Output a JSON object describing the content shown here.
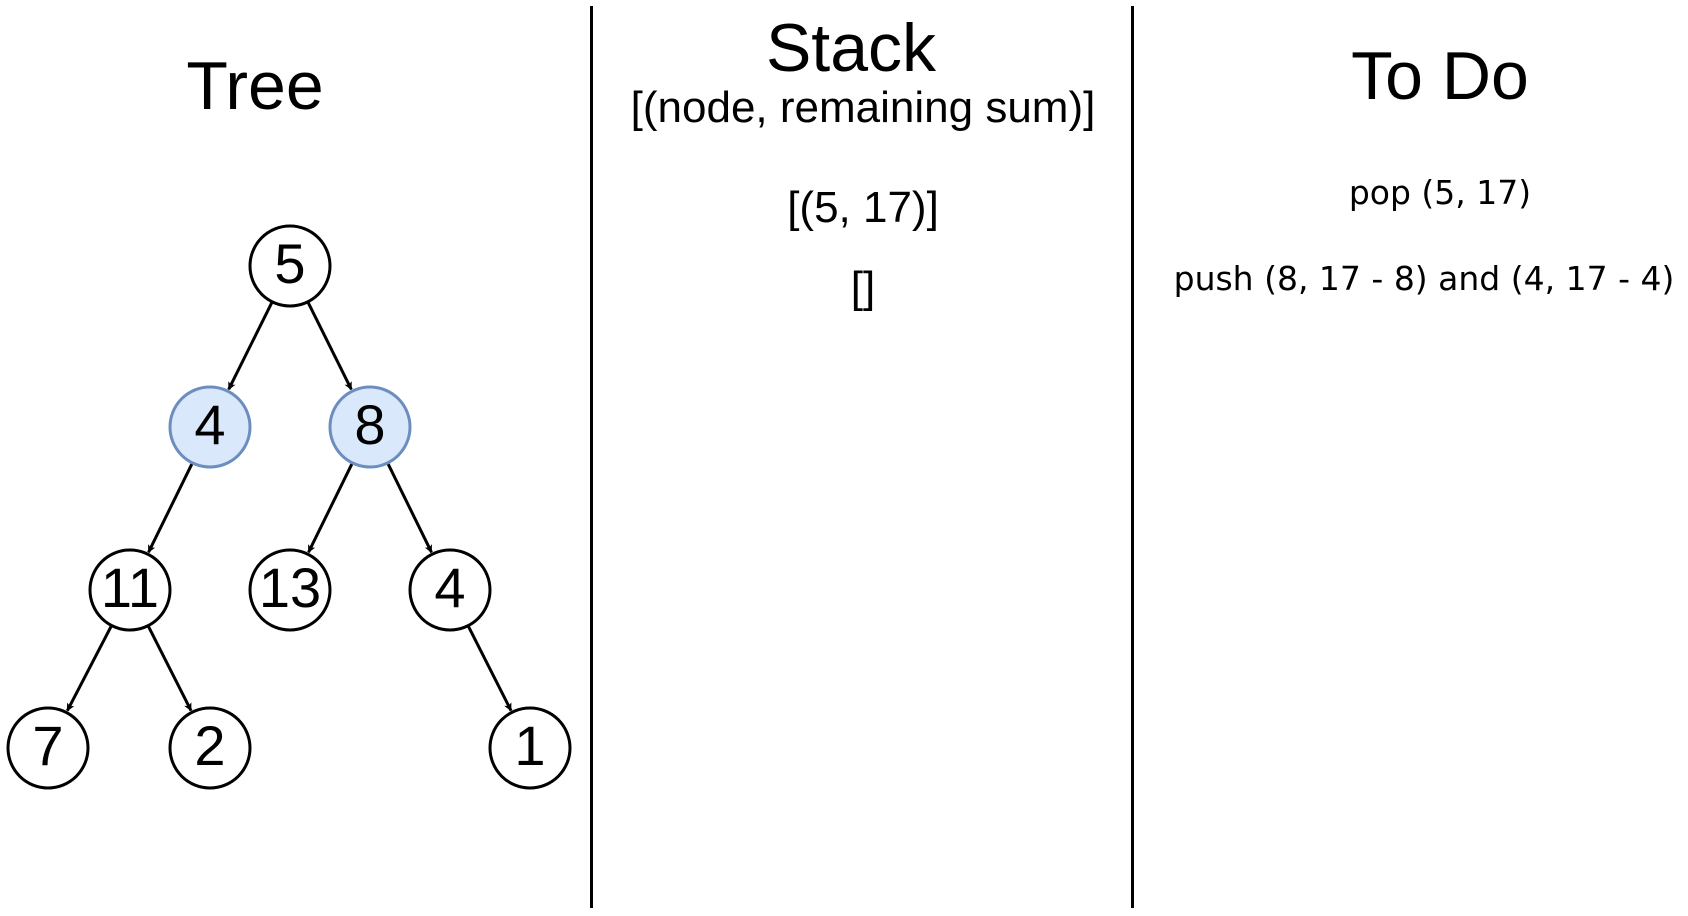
{
  "columns": {
    "tree": {
      "title": "Tree"
    },
    "stack": {
      "title": "Stack",
      "subtitle": "[(node, remaining sum)]"
    },
    "todo": {
      "title": "To Do"
    }
  },
  "tree": {
    "nodes": [
      {
        "id": "n5",
        "label": "5",
        "highlighted": false
      },
      {
        "id": "n4",
        "label": "4",
        "highlighted": true
      },
      {
        "id": "n8",
        "label": "8",
        "highlighted": true
      },
      {
        "id": "n11",
        "label": "11",
        "highlighted": false
      },
      {
        "id": "n13",
        "label": "13",
        "highlighted": false
      },
      {
        "id": "n4b",
        "label": "4",
        "highlighted": false
      },
      {
        "id": "n7",
        "label": "7",
        "highlighted": false
      },
      {
        "id": "n2",
        "label": "2",
        "highlighted": false
      },
      {
        "id": "n1",
        "label": "1",
        "highlighted": false
      }
    ],
    "edges": [
      [
        "n5",
        "n4"
      ],
      [
        "n5",
        "n8"
      ],
      [
        "n4",
        "n11"
      ],
      [
        "n8",
        "n13"
      ],
      [
        "n8",
        "n4b"
      ],
      [
        "n11",
        "n7"
      ],
      [
        "n11",
        "n2"
      ],
      [
        "n4b",
        "n1"
      ]
    ]
  },
  "stack": {
    "states": [
      "[(5, 17)]",
      "[]"
    ]
  },
  "todo": {
    "steps": [
      "pop (5, 17)",
      "push (8, 17 - 8) and (4, 17 - 4)"
    ]
  },
  "colors": {
    "highlight_fill": "#dae8fc",
    "highlight_stroke": "#6c8ebf",
    "default_fill": "#ffffff",
    "default_stroke": "#000000"
  }
}
